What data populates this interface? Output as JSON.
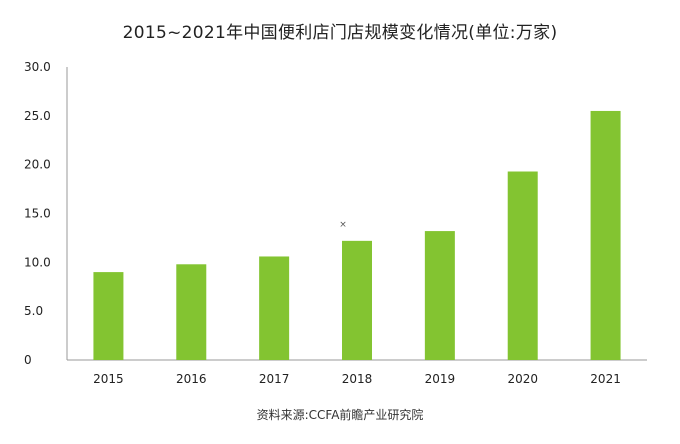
{
  "chart_data": {
    "type": "bar",
    "title": "2015~2021年中国便利店门店规模变化情况(单位:万家)",
    "xlabel": "",
    "ylabel": "",
    "categories": [
      "2015",
      "2016",
      "2017",
      "2018",
      "2019",
      "2020",
      "2021"
    ],
    "values": [
      9.0,
      9.8,
      10.6,
      12.2,
      13.2,
      19.3,
      25.5
    ],
    "ylim": [
      0,
      30
    ],
    "yticks": [
      "0",
      "5.0",
      "10.0",
      "15.0",
      "20.0",
      "25.0",
      "30.0"
    ],
    "bar_color": "#83c431",
    "axis_color": "#999999",
    "grid": false,
    "legend": "none",
    "source": "资料来源:CCFA前瞻产业研究院",
    "marker": "×"
  }
}
